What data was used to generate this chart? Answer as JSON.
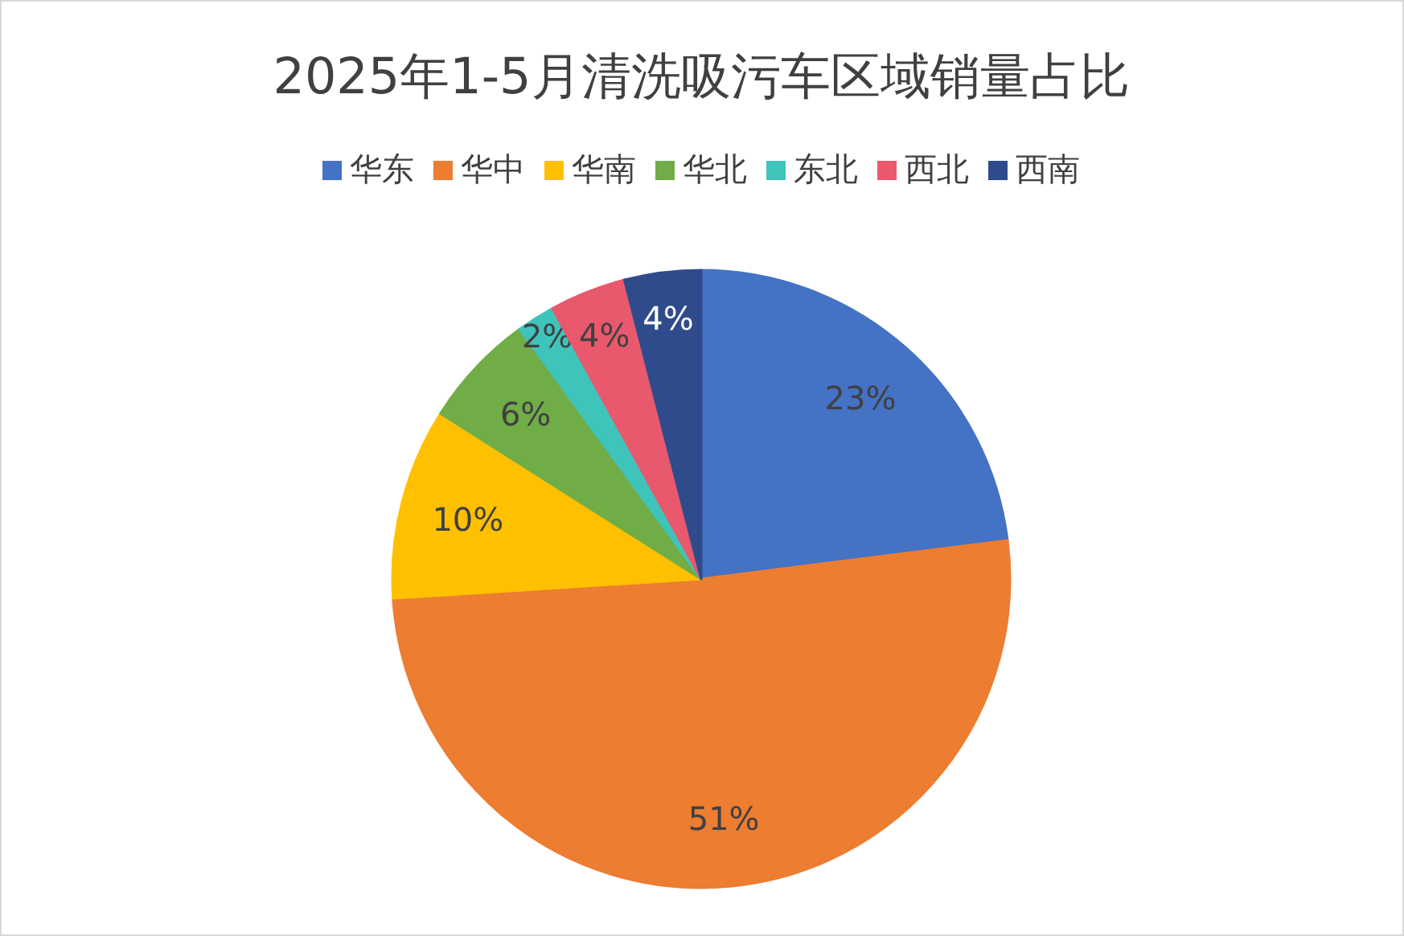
{
  "chart_data": {
    "type": "pie",
    "title": "2025年1-5月清洗吸污车区域销量占比",
    "categories": [
      "华东",
      "华中",
      "华南",
      "华北",
      "东北",
      "西北",
      "西南"
    ],
    "values": [
      23,
      51,
      10,
      6,
      2,
      4,
      4
    ],
    "colors": [
      "#4472c4",
      "#ed7d31",
      "#ffc000",
      "#70ad47",
      "#3fc4bb",
      "#e8596d",
      "#2f4b8c"
    ],
    "value_labels": [
      "23%",
      "51%",
      "10%",
      "6%",
      "2%",
      "4%",
      "4%"
    ],
    "legend": "top"
  }
}
